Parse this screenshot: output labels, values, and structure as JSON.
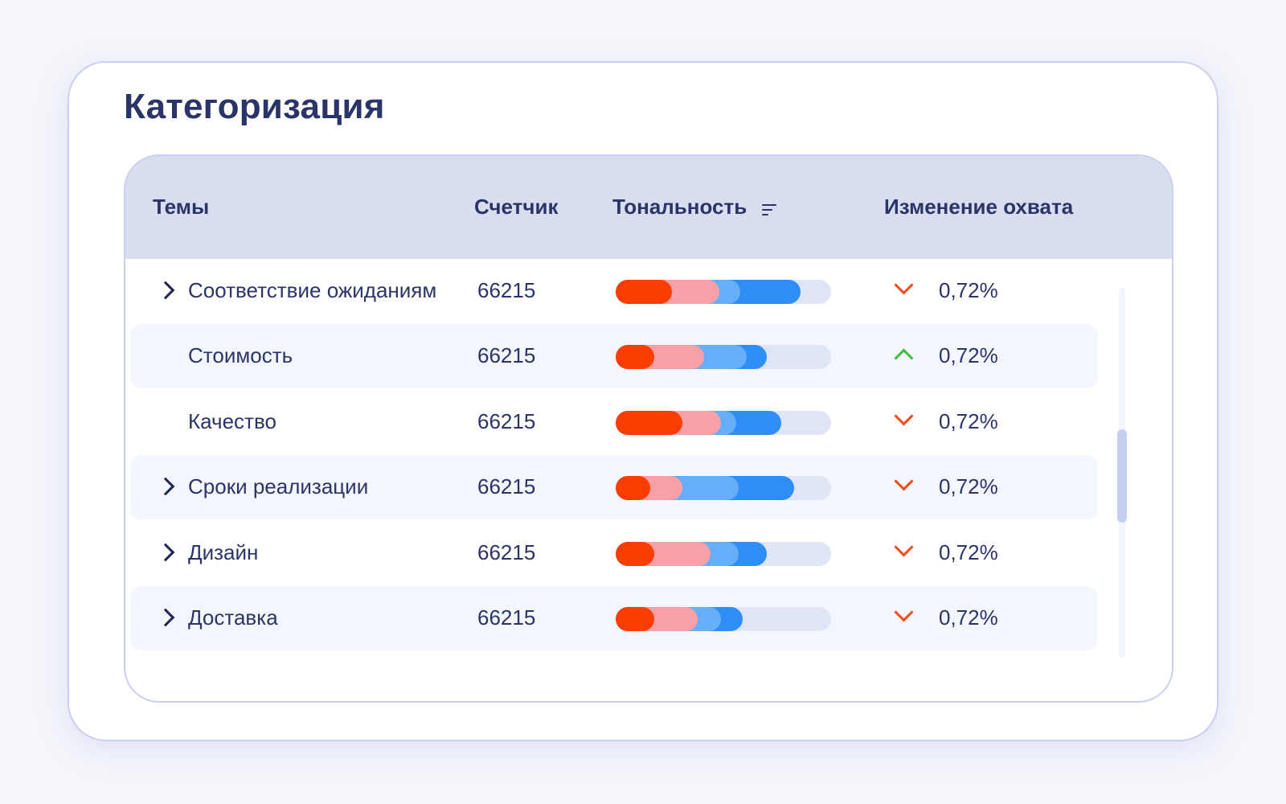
{
  "title": "Категоризация",
  "table": {
    "columns": {
      "topics": "Темы",
      "counter": "Счетчик",
      "tone": "Тональность",
      "change": "Изменение охвата"
    },
    "sort_icon": "sort-lines-icon",
    "colors": {
      "negative": "#f93d00",
      "negative_light": "#f7a0a8",
      "positive_light": "#67aef9",
      "positive": "#2f8ef5",
      "empty": "#dfe4f6",
      "trend_down": "#f24b1a",
      "trend_up": "#3cbf3c"
    },
    "rows": [
      {
        "topic": "Соответствие ожиданиям",
        "count": "66215",
        "change": "0,72%",
        "trend": "down",
        "expandable": true,
        "tone": [
          26,
          22,
          10,
          28
        ]
      },
      {
        "topic": "Стоимость",
        "count": "66215",
        "change": "0,72%",
        "trend": "up",
        "expandable": false,
        "tone": [
          18,
          23,
          20,
          9
        ]
      },
      {
        "topic": "Качество",
        "count": "66215",
        "change": "0,72%",
        "trend": "down",
        "expandable": false,
        "tone": [
          31,
          18,
          7,
          21
        ]
      },
      {
        "topic": "Сроки реализации",
        "count": "66215",
        "change": "0,72%",
        "trend": "down",
        "expandable": true,
        "tone": [
          16,
          15,
          26,
          26
        ]
      },
      {
        "topic": "Дизайн",
        "count": "66215",
        "change": "0,72%",
        "trend": "down",
        "expandable": true,
        "tone": [
          18,
          26,
          13,
          13
        ]
      },
      {
        "topic": "Доставка",
        "count": "66215",
        "change": "0,72%",
        "trend": "down",
        "expandable": true,
        "tone": [
          18,
          20,
          11,
          10
        ]
      }
    ]
  }
}
